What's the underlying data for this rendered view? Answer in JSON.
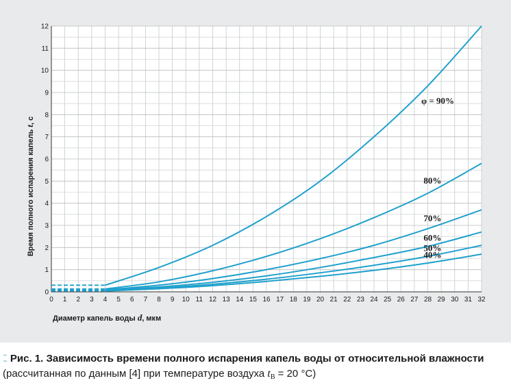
{
  "chart_data": {
    "type": "line",
    "xlabel_prefix": "Диаметр капель воды ",
    "xlabel_var": "d",
    "xlabel_suffix": ", мкм",
    "ylabel_prefix": "Время полного испарения капель ",
    "ylabel_var": "t",
    "ylabel_suffix": ", с",
    "xlim": [
      0,
      32
    ],
    "ylim": [
      0,
      12
    ],
    "x_ticks": [
      "0",
      "1",
      "2",
      "3",
      "4",
      "5",
      "6",
      "7",
      "8",
      "9",
      "10",
      "11",
      "12",
      "13",
      "14",
      "15",
      "16",
      "17",
      "18",
      "19",
      "20",
      "21",
      "22",
      "23",
      "24",
      "25",
      "26",
      "27",
      "28",
      "29",
      "30",
      "31",
      "32"
    ],
    "y_ticks": [
      "0",
      "1",
      "2",
      "3",
      "4",
      "5",
      "6",
      "7",
      "8",
      "9",
      "10",
      "11",
      "12"
    ],
    "grid": true,
    "line_color": "#1fa0cc",
    "dashed_segment_x": [
      0,
      4
    ],
    "series": [
      {
        "name": "φ = 90%",
        "x": [
          4,
          8,
          12,
          16,
          20,
          24,
          28,
          32
        ],
        "y": [
          0.3,
          1.1,
          2.1,
          3.4,
          5.0,
          7.0,
          9.3,
          12.0
        ]
      },
      {
        "name": "80%",
        "x": [
          4,
          8,
          12,
          16,
          20,
          24,
          28,
          32
        ],
        "y": [
          0.13,
          0.45,
          0.95,
          1.6,
          2.4,
          3.35,
          4.45,
          5.8
        ]
      },
      {
        "name": "70%",
        "x": [
          4,
          8,
          12,
          16,
          20,
          24,
          28,
          32
        ],
        "y": [
          0.09,
          0.3,
          0.6,
          1.0,
          1.5,
          2.1,
          2.85,
          3.7
        ]
      },
      {
        "name": "60%",
        "x": [
          4,
          8,
          12,
          16,
          20,
          24,
          28,
          32
        ],
        "y": [
          0.07,
          0.22,
          0.43,
          0.72,
          1.1,
          1.55,
          2.05,
          2.7
        ]
      },
      {
        "name": "50%",
        "x": [
          4,
          8,
          12,
          16,
          20,
          24,
          28,
          32
        ],
        "y": [
          0.05,
          0.17,
          0.34,
          0.57,
          0.86,
          1.2,
          1.6,
          2.1
        ]
      },
      {
        "name": "40%",
        "x": [
          4,
          8,
          12,
          16,
          20,
          24,
          28,
          32
        ],
        "y": [
          0.04,
          0.14,
          0.28,
          0.47,
          0.7,
          0.97,
          1.3,
          1.7
        ]
      }
    ]
  },
  "caption": {
    "dots": "⁚⁚",
    "title": "Рис. 1. Зависимость времени полного испарения капель воды от относительной влажности",
    "line2_prefix": "(рассчитанная по данным [4] при температуре воздуха ",
    "var": "t",
    "var_sub": "В",
    "line2_suffix": " = 20 °C)"
  }
}
